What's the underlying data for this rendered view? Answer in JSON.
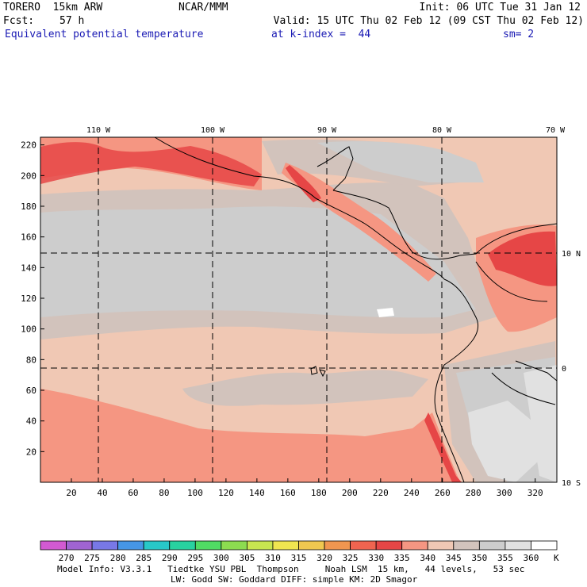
{
  "header": {
    "model": "TORERO  15km ARW",
    "org": "NCAR/MMM",
    "init": "Init: 06 UTC Tue 31 Jan 12",
    "fcst_label": "Fcst:",
    "fcst_value": "57 h",
    "valid": "Valid: 15 UTC Thu 02 Feb 12 (09 CST Thu 02 Feb 12)",
    "field": "Equivalent potential temperature",
    "kindex": "at k-index =  44",
    "smooth": "sm= 2"
  },
  "map": {
    "lon_labels": [
      "110 W",
      "100 W",
      "90 W",
      "80 W",
      "70 W"
    ],
    "lat_labels": [
      "10 N",
      "0",
      "10 S"
    ],
    "x_ticks": [
      20,
      40,
      60,
      80,
      100,
      120,
      140,
      160,
      180,
      200,
      220,
      240,
      260,
      280,
      300,
      320
    ],
    "y_ticks": [
      20,
      40,
      60,
      80,
      100,
      120,
      140,
      160,
      180,
      200,
      220
    ]
  },
  "colorbar": {
    "levels": [
      "270",
      "275",
      "280",
      "285",
      "290",
      "295",
      "300",
      "305",
      "310",
      "315",
      "320",
      "325",
      "330",
      "335",
      "340",
      "345",
      "350",
      "355",
      "360"
    ],
    "unit": "K",
    "colors": [
      "#d25ad2",
      "#a064d2",
      "#7878e6",
      "#4696e6",
      "#28c8c8",
      "#28d2a0",
      "#50dc64",
      "#8cdc50",
      "#c8e650",
      "#f0e650",
      "#f0c850",
      "#f09650",
      "#f06450",
      "#e64646",
      "#f59682",
      "#f0c8b4",
      "#d2c3bc",
      "#cdcdcd",
      "#e1e1e1",
      "#ffffff"
    ]
  },
  "footer": {
    "line1": "Model Info: V3.3.1   Tiedtke YSU PBL  Thompson     Noah LSM  15 km,   44 levels,   53 sec",
    "line2": "LW: Godd SW: Goddard DIFF: simple KM: 2D Smagor"
  }
}
